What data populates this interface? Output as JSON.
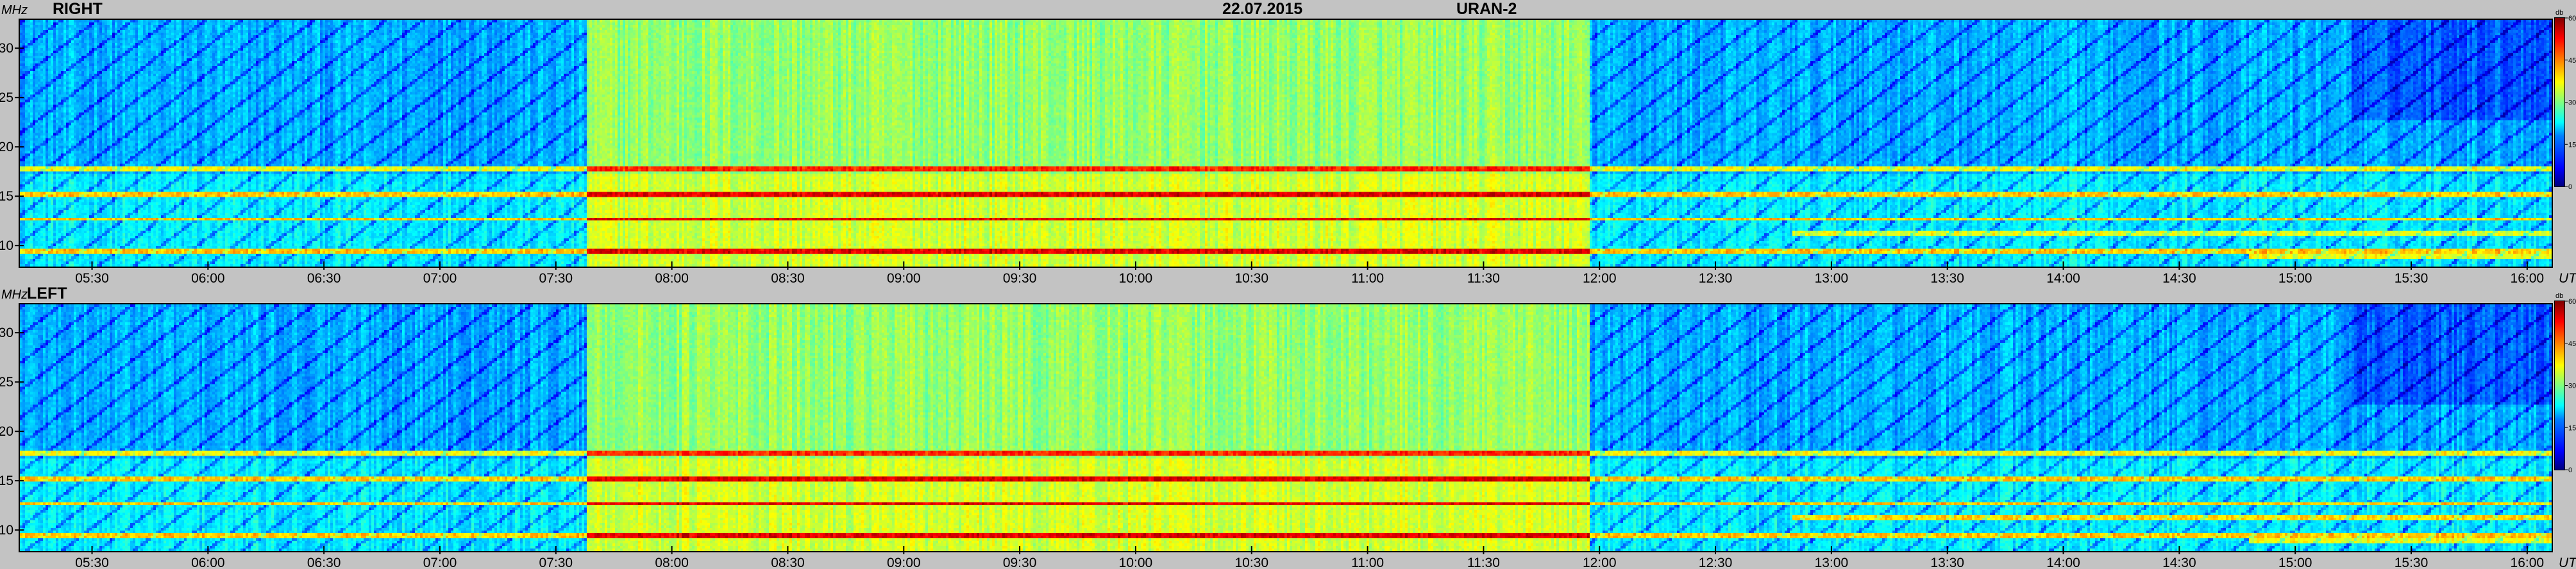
{
  "header": {
    "date": "22.07.2015",
    "instrument": "URAN-2"
  },
  "chart_data": [
    {
      "type": "heatmap",
      "title": "RIGHT",
      "ylabel": "MHz",
      "xlabel": "UT",
      "x_ticks": [
        "05:30",
        "06:00",
        "06:30",
        "07:00",
        "07:30",
        "08:00",
        "08:30",
        "09:00",
        "09:30",
        "10:00",
        "10:30",
        "11:00",
        "11:30",
        "12:00",
        "12:30",
        "13:00",
        "13:30",
        "14:00",
        "14:30",
        "15:00",
        "15:30",
        "16:00"
      ],
      "y_ticks": [
        10,
        15,
        20,
        25,
        30
      ],
      "ylim": [
        8,
        33
      ],
      "xlim": [
        "05:11",
        "16:06"
      ],
      "colorbar": {
        "label": "db",
        "ticks": [
          0,
          15,
          30,
          45,
          60
        ],
        "range": [
          0,
          60
        ]
      }
    },
    {
      "type": "heatmap",
      "title": "LEFT",
      "ylabel": "MHz",
      "xlabel": "UT",
      "x_ticks": [
        "05:30",
        "06:00",
        "06:30",
        "07:00",
        "07:30",
        "08:00",
        "08:30",
        "09:00",
        "09:30",
        "10:00",
        "10:30",
        "11:00",
        "11:30",
        "12:00",
        "12:30",
        "13:00",
        "13:30",
        "14:00",
        "14:30",
        "15:00",
        "15:30",
        "16:00"
      ],
      "y_ticks": [
        10,
        15,
        20,
        25,
        30
      ],
      "ylim": [
        8,
        33
      ],
      "xlim": [
        "05:11",
        "16:06"
      ],
      "colorbar": {
        "label": "db",
        "ticks": [
          0,
          15,
          30,
          45,
          60
        ],
        "range": [
          0,
          60
        ]
      }
    }
  ]
}
